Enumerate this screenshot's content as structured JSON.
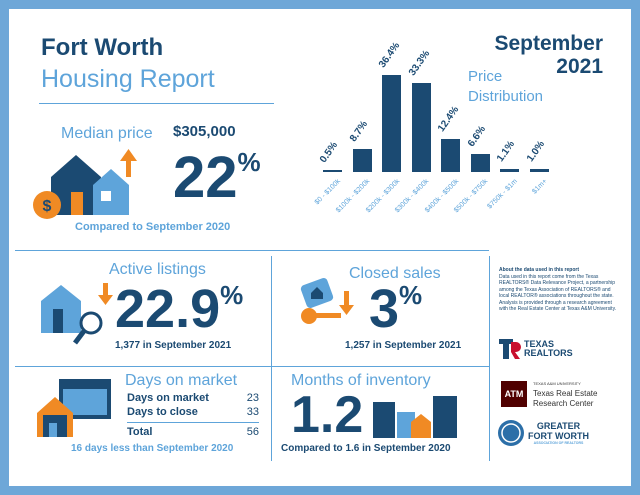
{
  "header": {
    "city": "Fort Worth",
    "subtitle": "Housing Report",
    "month": "September",
    "year": "2021",
    "chart_title_1": "Price",
    "chart_title_2": "Distribution"
  },
  "median": {
    "label": "Median price",
    "value": "$305,000",
    "change": "22",
    "unit": "%",
    "note": "Compared to September 2020"
  },
  "active": {
    "label": "Active listings",
    "change": "22.9",
    "unit": "%",
    "note": "1,377 in September 2021"
  },
  "closed": {
    "label": "Closed sales",
    "change": "3",
    "unit": "%",
    "note": "1,257 in September 2021"
  },
  "days": {
    "label": "Days on market",
    "rows": [
      {
        "label": "Days on market",
        "value": "23"
      },
      {
        "label": "Days to close",
        "value": "33"
      }
    ],
    "total_label": "Total",
    "total": "56",
    "note": "16 days less than September 2020"
  },
  "inventory": {
    "label": "Months of inventory",
    "value": "1.2",
    "note": "Compared to 1.6 in September 2020"
  },
  "about": {
    "title": "About the data used in this report",
    "body": "Data used in this report come from the Texas REALTORS® Data Relevance Project, a partnership among the Texas Association of REALTORS® and local REALTOR® associations throughout the state. Analysis is provided through a research agreement with the Real Estate Center at Texas A&M University."
  },
  "logos": {
    "texas_realtors_1": "TEXAS",
    "texas_realtors_2": "REALTORS",
    "tamu_small": "TEXAS A&M UNIVERSITY",
    "tamu_1": "Texas Real Estate",
    "tamu_2": "Research Center",
    "gfw_1": "GREATER",
    "gfw_2": "FORT WORTH",
    "gfw_3": "ASSOCIATION OF REALTORS"
  },
  "colors": {
    "navy": "#1b4a72",
    "light_blue": "#5ea4da",
    "orange": "#f08a24"
  },
  "chart_data": {
    "type": "bar",
    "title": "Price Distribution",
    "categories": [
      "$0 - $100k",
      "$100k - $200k",
      "$200k - $300k",
      "$300k - $400k",
      "$400k - $500k",
      "$500k - $750k",
      "$750k - $1m",
      "$1m+"
    ],
    "values": [
      0.5,
      8.7,
      36.4,
      33.3,
      12.4,
      6.6,
      1.1,
      1.0
    ],
    "labels": [
      "0.5%",
      "8.7%",
      "36.4%",
      "33.3%",
      "12.4%",
      "6.6%",
      "1.1%",
      "1.0%"
    ],
    "ylim": [
      0,
      40
    ],
    "grid": false
  }
}
